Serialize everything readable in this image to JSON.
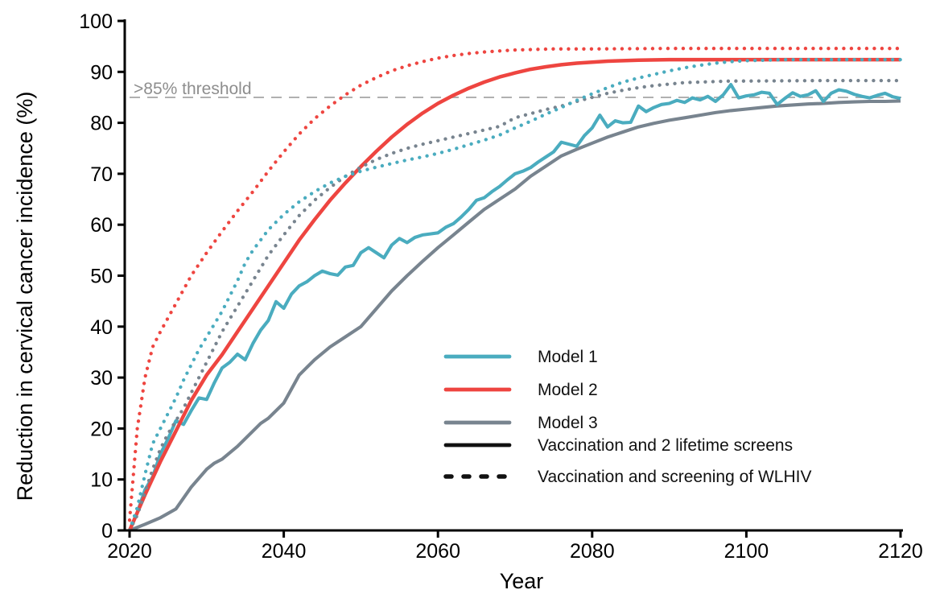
{
  "chart_data": {
    "type": "line",
    "title": "",
    "xlabel": "Year",
    "ylabel": "Reduction in cervical cancer incidence (%)",
    "xlim": [
      2020,
      2120
    ],
    "ylim": [
      0,
      100
    ],
    "x_ticks": [
      2020,
      2040,
      2060,
      2080,
      2100,
      2120
    ],
    "y_ticks": [
      0,
      10,
      20,
      30,
      40,
      50,
      60,
      70,
      80,
      90,
      100
    ],
    "grid": false,
    "legend_position": "inside-center-right",
    "threshold": {
      "value": 85,
      "label": ">85% threshold",
      "line_color": "#b0b0b0",
      "label_color": "#8e8e8e"
    },
    "colors": {
      "model1": "#4aacbf",
      "model2": "#ee4540",
      "model3": "#78848f",
      "black": "#111111"
    },
    "legend": {
      "items": [
        {
          "label": "Model 1",
          "color": "model1",
          "style": "solid"
        },
        {
          "label": "Model 2",
          "color": "model2",
          "style": "solid"
        },
        {
          "label": "Model 3",
          "color": "model3",
          "style": "solid"
        },
        {
          "label": "Vaccination and 2 lifetime screens",
          "color": "black",
          "style": "solid"
        },
        {
          "label": "Vaccination and screening of WLHIV",
          "color": "black",
          "style": "dotted"
        }
      ]
    },
    "series": [
      {
        "id": "model3-solid",
        "name": "Model 3 - Vaccination and 2 lifetime screens",
        "color": "model3",
        "style": "solid",
        "points": [
          [
            2020,
            0
          ],
          [
            2022,
            1.2
          ],
          [
            2024,
            2.5
          ],
          [
            2026,
            4.2
          ],
          [
            2028,
            8.5
          ],
          [
            2030,
            12
          ],
          [
            2031,
            13.2
          ],
          [
            2032,
            14
          ],
          [
            2034,
            16.5
          ],
          [
            2036,
            19.5
          ],
          [
            2037,
            21
          ],
          [
            2038,
            22
          ],
          [
            2040,
            25
          ],
          [
            2042,
            30.5
          ],
          [
            2044,
            33.5
          ],
          [
            2046,
            36
          ],
          [
            2048,
            38
          ],
          [
            2050,
            40
          ],
          [
            2052,
            43.5
          ],
          [
            2054,
            47
          ],
          [
            2056,
            50
          ],
          [
            2058,
            52.8
          ],
          [
            2060,
            55.5
          ],
          [
            2062,
            58
          ],
          [
            2064,
            60.5
          ],
          [
            2066,
            63
          ],
          [
            2068,
            65
          ],
          [
            2070,
            67
          ],
          [
            2072,
            69.5
          ],
          [
            2074,
            71.5
          ],
          [
            2076,
            73.5
          ],
          [
            2078,
            74.8
          ],
          [
            2080,
            76
          ],
          [
            2082,
            77.2
          ],
          [
            2084,
            78.2
          ],
          [
            2086,
            79.2
          ],
          [
            2088,
            79.9
          ],
          [
            2090,
            80.5
          ],
          [
            2092,
            81
          ],
          [
            2094,
            81.5
          ],
          [
            2096,
            82
          ],
          [
            2098,
            82.4
          ],
          [
            2100,
            82.7
          ],
          [
            2102,
            83
          ],
          [
            2104,
            83.3
          ],
          [
            2106,
            83.5
          ],
          [
            2108,
            83.7
          ],
          [
            2110,
            83.8
          ],
          [
            2112,
            84
          ],
          [
            2114,
            84.1
          ],
          [
            2116,
            84.2
          ],
          [
            2118,
            84.2
          ],
          [
            2120,
            84.3
          ]
        ]
      },
      {
        "id": "model1-solid",
        "name": "Model 1 - Vaccination and 2 lifetime screens",
        "color": "model1",
        "style": "solid",
        "start_year": 2020,
        "step": 1,
        "values": [
          0,
          3.5,
          8,
          10.5,
          15,
          18,
          21.5,
          20.8,
          23.5,
          26,
          25.7,
          29,
          31.9,
          33,
          34.6,
          33.5,
          36.7,
          39.3,
          41.2,
          44.9,
          43.6,
          46.4,
          48,
          48.8,
          50,
          50.9,
          50.4,
          50.1,
          51.7,
          52,
          54.5,
          55.5,
          54.5,
          53.5,
          56,
          57.3,
          56.5,
          57.5,
          58,
          58.2,
          58.4,
          59.5,
          60.2,
          61.5,
          63,
          64.8,
          65.3,
          66.5,
          67.5,
          68.8,
          70,
          70.5,
          71.2,
          72.3,
          73.3,
          74.3,
          76.2,
          75.8,
          75.4,
          77.5,
          79,
          81.5,
          79.2,
          80.4,
          80,
          80.1,
          83.3,
          82.2,
          83,
          83.6,
          83.8,
          84.4,
          84,
          84.9,
          84.5,
          85.2,
          84.2,
          85.5,
          87.5,
          84.9,
          85.3,
          85.5,
          86,
          85.8,
          83.6,
          84.8,
          85.9,
          85.2,
          85.5,
          86.3,
          84.2,
          85.8,
          86.5,
          86.2,
          85.6,
          85.2,
          84.9,
          85.4,
          85.8,
          85.1,
          84.8
        ]
      },
      {
        "id": "model2-solid",
        "name": "Model 2 - Vaccination and 2 lifetime screens",
        "color": "model2",
        "style": "solid",
        "points": [
          [
            2020,
            0
          ],
          [
            2022,
            7
          ],
          [
            2024,
            13.5
          ],
          [
            2026,
            19.5
          ],
          [
            2028,
            25.5
          ],
          [
            2030,
            30.5
          ],
          [
            2032,
            34.5
          ],
          [
            2034,
            39
          ],
          [
            2036,
            43.5
          ],
          [
            2038,
            48
          ],
          [
            2040,
            52.5
          ],
          [
            2042,
            57
          ],
          [
            2044,
            61
          ],
          [
            2046,
            64.8
          ],
          [
            2048,
            68.2
          ],
          [
            2050,
            71.4
          ],
          [
            2052,
            74.4
          ],
          [
            2054,
            77.2
          ],
          [
            2056,
            79.7
          ],
          [
            2058,
            81.9
          ],
          [
            2060,
            83.8
          ],
          [
            2062,
            85.4
          ],
          [
            2064,
            86.8
          ],
          [
            2066,
            88
          ],
          [
            2068,
            89
          ],
          [
            2070,
            89.8
          ],
          [
            2072,
            90.5
          ],
          [
            2074,
            91
          ],
          [
            2076,
            91.4
          ],
          [
            2078,
            91.7
          ],
          [
            2080,
            91.9
          ],
          [
            2082,
            92.1
          ],
          [
            2084,
            92.2
          ],
          [
            2086,
            92.3
          ],
          [
            2090,
            92.4
          ],
          [
            2100,
            92.4
          ],
          [
            2110,
            92.4
          ],
          [
            2120,
            92.4
          ]
        ]
      },
      {
        "id": "model3-dotted",
        "name": "Model 3 - Vaccination and screening of WLHIV",
        "color": "model3",
        "style": "dotted",
        "points": [
          [
            2020,
            0
          ],
          [
            2021,
            3
          ],
          [
            2022,
            7.5
          ],
          [
            2023,
            12
          ],
          [
            2024,
            16
          ],
          [
            2025,
            19
          ],
          [
            2026,
            21.5
          ],
          [
            2027,
            24
          ],
          [
            2028,
            27
          ],
          [
            2029,
            30
          ],
          [
            2030,
            33
          ],
          [
            2031,
            36
          ],
          [
            2032,
            39
          ],
          [
            2033,
            41.5
          ],
          [
            2034,
            44
          ],
          [
            2035,
            46.5
          ],
          [
            2036,
            49
          ],
          [
            2037,
            51.5
          ],
          [
            2038,
            54
          ],
          [
            2039,
            56
          ],
          [
            2040,
            58
          ],
          [
            2042,
            61.8
          ],
          [
            2044,
            64.8
          ],
          [
            2046,
            67.3
          ],
          [
            2048,
            69.5
          ],
          [
            2050,
            71.3
          ],
          [
            2052,
            72.8
          ],
          [
            2054,
            74
          ],
          [
            2056,
            75
          ],
          [
            2058,
            75.8
          ],
          [
            2060,
            76.5
          ],
          [
            2062,
            77.2
          ],
          [
            2064,
            77.9
          ],
          [
            2066,
            78.6
          ],
          [
            2068,
            79.3
          ],
          [
            2070,
            81
          ],
          [
            2072,
            81.8
          ],
          [
            2074,
            82.6
          ],
          [
            2076,
            83.3
          ],
          [
            2078,
            84.2
          ],
          [
            2080,
            85
          ],
          [
            2082,
            85.8
          ],
          [
            2084,
            86.4
          ],
          [
            2086,
            86.9
          ],
          [
            2088,
            87.3
          ],
          [
            2090,
            87.6
          ],
          [
            2092,
            87.9
          ],
          [
            2094,
            88
          ],
          [
            2096,
            88.1
          ],
          [
            2098,
            88.2
          ],
          [
            2100,
            88.2
          ],
          [
            2110,
            88.3
          ],
          [
            2120,
            88.3
          ]
        ]
      },
      {
        "id": "model1-dotted",
        "name": "Model 1 - Vaccination and screening of WLHIV",
        "color": "model1",
        "style": "dotted",
        "points": [
          [
            2020,
            0
          ],
          [
            2021,
            4.5
          ],
          [
            2022,
            11
          ],
          [
            2023,
            17
          ],
          [
            2024,
            20
          ],
          [
            2025,
            23
          ],
          [
            2026,
            26
          ],
          [
            2027,
            29.5
          ],
          [
            2028,
            32.5
          ],
          [
            2029,
            35.5
          ],
          [
            2030,
            38
          ],
          [
            2031,
            40.5
          ],
          [
            2032,
            43
          ],
          [
            2033,
            46
          ],
          [
            2034,
            49
          ],
          [
            2035,
            52.5
          ],
          [
            2036,
            55
          ],
          [
            2037,
            57
          ],
          [
            2038,
            59
          ],
          [
            2040,
            62
          ],
          [
            2042,
            64.5
          ],
          [
            2044,
            66.5
          ],
          [
            2046,
            68.2
          ],
          [
            2048,
            69.5
          ],
          [
            2050,
            70.5
          ],
          [
            2052,
            71.3
          ],
          [
            2054,
            72
          ],
          [
            2056,
            72.7
          ],
          [
            2058,
            73.3
          ],
          [
            2060,
            74
          ],
          [
            2062,
            74.8
          ],
          [
            2064,
            75.7
          ],
          [
            2066,
            76.6
          ],
          [
            2068,
            77.6
          ],
          [
            2070,
            79
          ],
          [
            2072,
            80.3
          ],
          [
            2074,
            81.7
          ],
          [
            2076,
            83
          ],
          [
            2078,
            84.4
          ],
          [
            2080,
            85.7
          ],
          [
            2082,
            86.9
          ],
          [
            2084,
            88
          ],
          [
            2086,
            88.8
          ],
          [
            2088,
            89.5
          ],
          [
            2090,
            90.2
          ],
          [
            2092,
            90.8
          ],
          [
            2094,
            91.3
          ],
          [
            2096,
            91.7
          ],
          [
            2098,
            92
          ],
          [
            2100,
            92.2
          ],
          [
            2105,
            92.4
          ],
          [
            2110,
            92.4
          ],
          [
            2120,
            92.4
          ]
        ]
      },
      {
        "id": "model2-dotted",
        "name": "Model 2 - Vaccination and screening of WLHIV",
        "color": "model2",
        "style": "dotted",
        "points": [
          [
            2020,
            2
          ],
          [
            2021,
            20
          ],
          [
            2022,
            30
          ],
          [
            2023,
            36
          ],
          [
            2024,
            39
          ],
          [
            2026,
            44.5
          ],
          [
            2028,
            50
          ],
          [
            2030,
            54.5
          ],
          [
            2032,
            58.7
          ],
          [
            2034,
            62.7
          ],
          [
            2036,
            66.5
          ],
          [
            2038,
            70.5
          ],
          [
            2040,
            74.3
          ],
          [
            2042,
            77.8
          ],
          [
            2044,
            80.8
          ],
          [
            2046,
            83.3
          ],
          [
            2048,
            85.5
          ],
          [
            2050,
            87.4
          ],
          [
            2052,
            88.9
          ],
          [
            2054,
            90.2
          ],
          [
            2056,
            91.2
          ],
          [
            2058,
            92
          ],
          [
            2060,
            92.7
          ],
          [
            2062,
            93.2
          ],
          [
            2064,
            93.6
          ],
          [
            2066,
            93.9
          ],
          [
            2068,
            94.1
          ],
          [
            2070,
            94.3
          ],
          [
            2075,
            94.5
          ],
          [
            2080,
            94.5
          ],
          [
            2090,
            94.6
          ],
          [
            2100,
            94.6
          ],
          [
            2110,
            94.6
          ],
          [
            2120,
            94.6
          ]
        ]
      }
    ]
  }
}
